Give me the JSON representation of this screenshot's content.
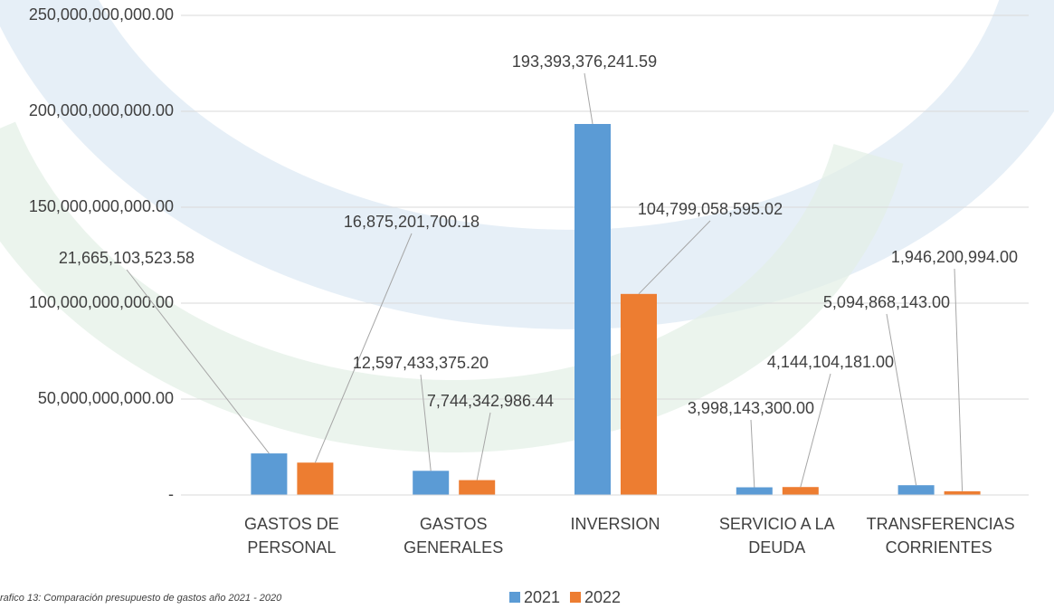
{
  "chart_data": {
    "type": "bar",
    "caption": "rafico 13: Comparación presupuesto de gastos año 2021 - 2020",
    "categories": [
      "GASTOS DE PERSONAL",
      "GASTOS GENERALES",
      "INVERSION",
      "SERVICIO A LA DEUDA",
      "TRANSFERENCIAS CORRIENTES"
    ],
    "series": [
      {
        "name": "2021",
        "color": "#5b9bd5",
        "values": [
          21665103523.58,
          12597433375.2,
          193393376241.59,
          3998143300.0,
          5094868143.0
        ],
        "value_labels": [
          "21,665,103,523.58",
          "12,597,433,375.20",
          "193,393,376,241.59",
          "3,998,143,300.00",
          "5,094,868,143.00"
        ]
      },
      {
        "name": "2022",
        "color": "#ed7d31",
        "values": [
          16875201700.18,
          7744342986.44,
          104799058595.02,
          4144104181.0,
          1946200994.0
        ],
        "value_labels": [
          "16,875,201,700.18",
          "7,744,342,986.44",
          "104,799,058,595.02",
          "4,144,104,181.00",
          "1,946,200,994.00"
        ]
      }
    ],
    "ylim": [
      0,
      250000000000
    ],
    "yticks": [
      {
        "value": 0,
        "label": "-"
      },
      {
        "value": 50000000000,
        "label": "50,000,000,000.00"
      },
      {
        "value": 100000000000,
        "label": "100,000,000,000.00"
      },
      {
        "value": 150000000000,
        "label": "150,000,000,000.00"
      },
      {
        "value": 200000000000,
        "label": "200,000,000,000.00"
      },
      {
        "value": 250000000000,
        "label": "250,000,000,000.00"
      }
    ],
    "grid": true,
    "legend": "bottom"
  }
}
